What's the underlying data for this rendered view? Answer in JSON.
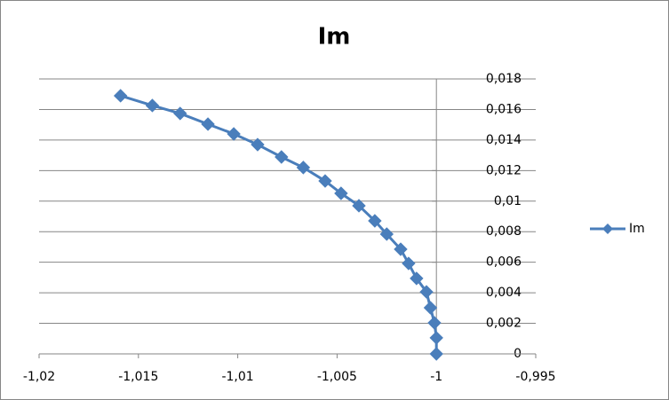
{
  "chart_data": {
    "type": "scatter-line",
    "title": "Im",
    "series": [
      {
        "name": "Im",
        "color": "#4a7ebb",
        "x": [
          -1.0159,
          -1.0143,
          -1.0129,
          -1.0115,
          -1.0102,
          -1.009,
          -1.0078,
          -1.0067,
          -1.0056,
          -1.0048,
          -1.0039,
          -1.0031,
          -1.0025,
          -1.0018,
          -1.0014,
          -1.001,
          -1.0005,
          -1.0003,
          -1.0001,
          -1.0,
          -1.0
        ],
        "values": [
          0.0169,
          0.01626,
          0.01574,
          0.01504,
          0.0144,
          0.0137,
          0.01289,
          0.0122,
          0.01132,
          0.01051,
          0.0097,
          0.00871,
          0.00784,
          0.00685,
          0.00592,
          0.00494,
          0.00406,
          0.00302,
          0.00203,
          0.00105,
          0
        ]
      }
    ],
    "xlim": [
      -1.02,
      -0.995
    ],
    "xticks": [
      {
        "value": -1.02,
        "label": "-1,02"
      },
      {
        "value": -1.015,
        "label": "-1,015"
      },
      {
        "value": -1.01,
        "label": "-1,01"
      },
      {
        "value": -1.005,
        "label": "-1,005"
      },
      -1,
      {
        "value": -0.995,
        "label": "-0,995"
      }
    ],
    "ylim": [
      0,
      0.018
    ],
    "yticks": [
      0,
      {
        "value": 0.002,
        "label": "0,002"
      },
      {
        "value": 0.004,
        "label": "0,004"
      },
      {
        "value": 0.006,
        "label": "0,006"
      },
      {
        "value": 0.008,
        "label": "0,008"
      },
      {
        "value": 0.01,
        "label": "0,01"
      },
      {
        "value": 0.012,
        "label": "0,012"
      },
      {
        "value": 0.014,
        "label": "0,014"
      },
      {
        "value": 0.016,
        "label": "0,016"
      },
      {
        "value": 0.018,
        "label": "0,018"
      }
    ],
    "grid": true,
    "legend": "right"
  }
}
